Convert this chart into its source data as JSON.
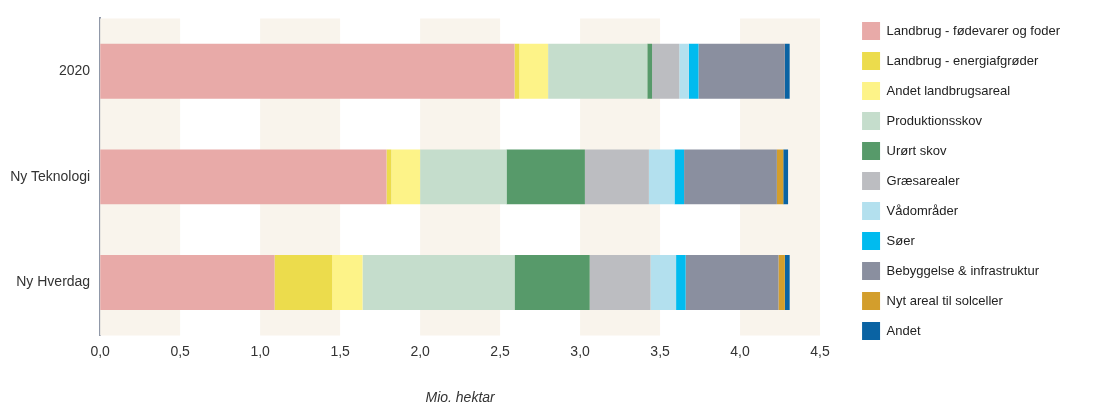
{
  "chart_data": {
    "type": "bar",
    "orientation": "horizontal",
    "stacked": true,
    "categories": [
      "2020",
      "Ny Teknologi",
      "Ny Hverdag"
    ],
    "xlabel": "Mio. hektar",
    "xlim": [
      0,
      4.5
    ],
    "xticks": [
      {
        "value": 0,
        "label": "0,0"
      },
      {
        "value": 0.5,
        "label": "0,5"
      },
      {
        "value": 1,
        "label": "1,0"
      },
      {
        "value": 1.5,
        "label": "1,5"
      },
      {
        "value": 2,
        "label": "2,0"
      },
      {
        "value": 2.5,
        "label": "2,5"
      },
      {
        "value": 3,
        "label": "3,0"
      },
      {
        "value": 3.5,
        "label": "3,5"
      },
      {
        "value": 4,
        "label": "4,0"
      },
      {
        "value": 4.5,
        "label": "4,5"
      }
    ],
    "legend": "right",
    "bands": [
      {
        "axis": "x",
        "from": 0,
        "to": 0.5,
        "color": "#f9f4ec"
      },
      {
        "axis": "x",
        "from": 1,
        "to": 1.5,
        "color": "#f9f4ec"
      },
      {
        "axis": "x",
        "from": 2,
        "to": 2.5,
        "color": "#f9f4ec"
      },
      {
        "axis": "x",
        "from": 3,
        "to": 3.5,
        "color": "#f9f4ec"
      },
      {
        "axis": "x",
        "from": 4,
        "to": 4.5,
        "color": "#f9f4ec"
      }
    ],
    "series": [
      {
        "name": "Landbrug - fødevarer og foder",
        "color": "#e8aaa8",
        "values": [
          2.59,
          1.79,
          1.09
        ]
      },
      {
        "name": "Landbrug - energiafgrøder",
        "color": "#ecdc4c",
        "values": [
          0.03,
          0.03,
          0.36
        ]
      },
      {
        "name": "Andet landbrugsareal",
        "color": "#fdf388",
        "values": [
          0.18,
          0.18,
          0.19
        ]
      },
      {
        "name": "Produktionsskov",
        "color": "#c5ddcc",
        "values": [
          0.62,
          0.54,
          0.95
        ]
      },
      {
        "name": "Urørt skov",
        "color": "#579a6a",
        "values": [
          0.03,
          0.49,
          0.47
        ]
      },
      {
        "name": "Græsarealer",
        "color": "#bcbdc1",
        "values": [
          0.17,
          0.4,
          0.38
        ]
      },
      {
        "name": "Vådområder",
        "color": "#b3e0ee",
        "values": [
          0.06,
          0.16,
          0.16
        ]
      },
      {
        "name": "Søer",
        "color": "#00bbef",
        "values": [
          0.06,
          0.06,
          0.06
        ]
      },
      {
        "name": "Bebyggelse & infrastruktur",
        "color": "#8a8f9f",
        "values": [
          0.54,
          0.58,
          0.58
        ]
      },
      {
        "name": "Nyt areal til solceller",
        "color": "#d39e2c",
        "values": [
          0,
          0.04,
          0.04
        ]
      },
      {
        "name": "Andet",
        "color": "#0a63a3",
        "values": [
          0.03,
          0.03,
          0.03
        ]
      }
    ]
  }
}
